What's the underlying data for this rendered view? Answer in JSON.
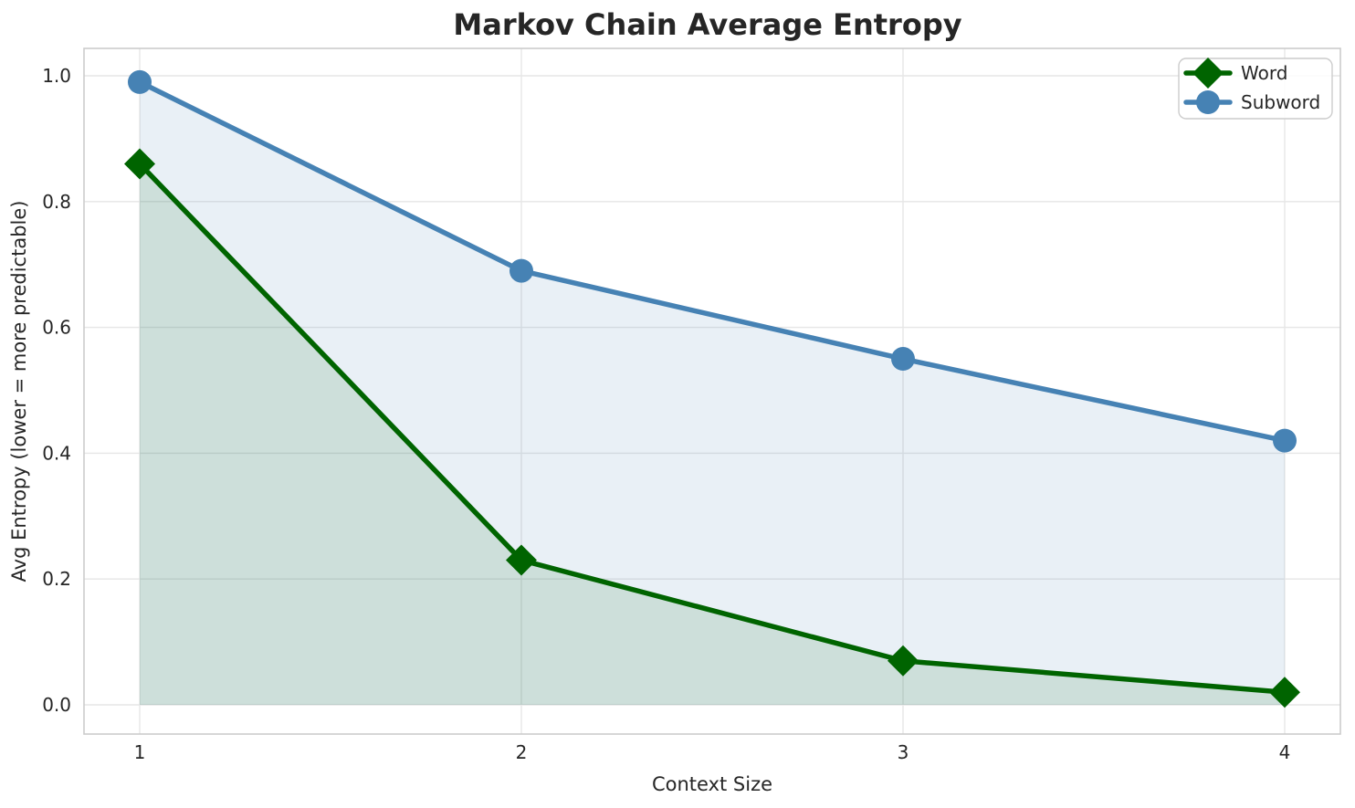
{
  "chart_data": {
    "type": "line",
    "title": "Markov Chain Average Entropy",
    "xlabel": "Context Size",
    "ylabel": "Avg Entropy (lower = more predictable)",
    "x": [
      1,
      2,
      3,
      4
    ],
    "series": [
      {
        "name": "Word",
        "values": [
          0.86,
          0.23,
          0.07,
          0.02
        ],
        "color": "#006400",
        "marker": "diamond"
      },
      {
        "name": "Subword",
        "values": [
          0.99,
          0.69,
          0.55,
          0.42
        ],
        "color": "#4682B4",
        "marker": "circle"
      }
    ],
    "xticks": [
      1,
      2,
      3,
      4
    ],
    "xtick_labels": [
      "1",
      "2",
      "3",
      "4"
    ],
    "yticks": [
      0.0,
      0.2,
      0.4,
      0.6,
      0.8,
      1.0
    ],
    "ytick_labels": [
      "0.0",
      "0.2",
      "0.4",
      "0.6",
      "0.8",
      "1.0"
    ],
    "xlim": [
      0.85,
      4.15
    ],
    "ylim": [
      -0.05,
      1.05
    ],
    "grid": true,
    "area_fill": true,
    "fill_baseline": 0.0,
    "fill_opacity": 0.12,
    "legend": {
      "position": "upper right",
      "labels": [
        "Word",
        "Subword"
      ]
    },
    "style": {
      "grid_color": "#e6e6e6",
      "spine_color": "#cccccc",
      "text_color": "#262626",
      "background": "#ffffff",
      "legend_border": "#cccccc",
      "legend_background": "rgba(255,255,255,0.85)"
    }
  }
}
